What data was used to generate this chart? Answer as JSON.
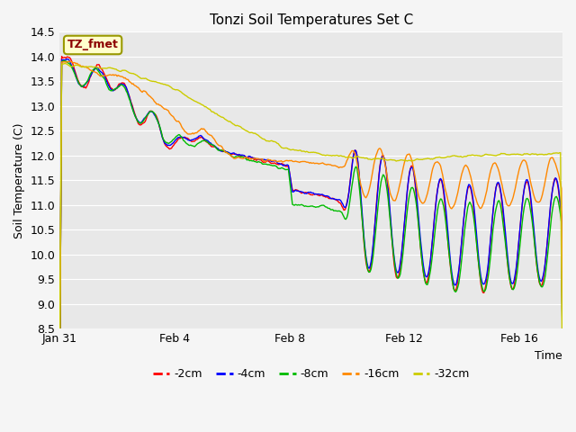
{
  "title": "Tonzi Soil Temperatures Set C",
  "xlabel": "Time",
  "ylabel": "Soil Temperature (C)",
  "ylim": [
    8.5,
    14.5
  ],
  "fig_facecolor": "#f5f5f5",
  "plot_facecolor": "#e8e8e8",
  "annotation_text": "TZ_fmet",
  "annotation_bg": "#ffffcc",
  "annotation_fg": "#8b0000",
  "annotation_border": "#999900",
  "xtick_labels": [
    "Jan 31",
    "Feb 4",
    "Feb 8",
    "Feb 12",
    "Feb 16"
  ],
  "xtick_positions": [
    0,
    4,
    8,
    12,
    16
  ],
  "yticks": [
    8.5,
    9.0,
    9.5,
    10.0,
    10.5,
    11.0,
    11.5,
    12.0,
    12.5,
    13.0,
    13.5,
    14.0,
    14.5
  ],
  "legend_labels": [
    "-2cm",
    "-4cm",
    "-8cm",
    "-16cm",
    "-32cm"
  ],
  "line_colors": [
    "#ff0000",
    "#0000ff",
    "#00bb00",
    "#ff8800",
    "#cccc00"
  ],
  "grid_color": "#ffffff",
  "n_points": 500,
  "xlim": [
    0,
    17.5
  ]
}
